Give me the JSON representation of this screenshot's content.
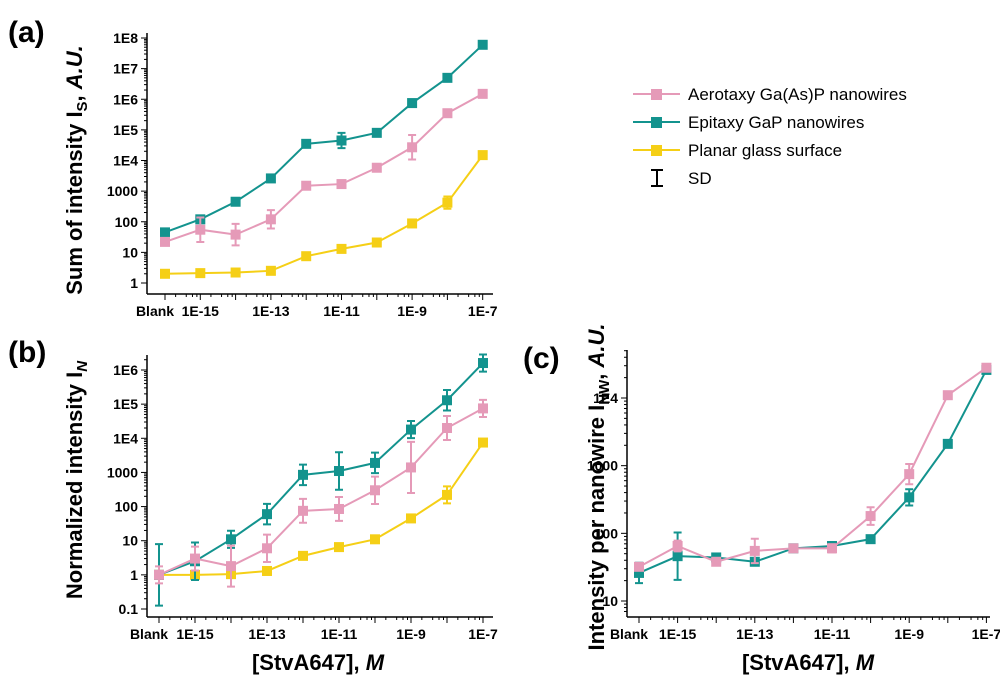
{
  "chart_data": [
    {
      "type": "line",
      "panel_label": "(a)",
      "ylabel": "Sum of intensity I",
      "ylabel_sub": "S",
      "ylabel_unit": "A.U.",
      "xlabel": "",
      "yscale": "log",
      "ylim": [
        1,
        100000000
      ],
      "y_ticks": [
        "1",
        "10",
        "100",
        "1000",
        "1E4",
        "1E5",
        "1E6",
        "1E7",
        "1E8"
      ],
      "x_ticks": [
        "Blank",
        "1E-15",
        "1E-13",
        "1E-11",
        "1E-9",
        "1E-7"
      ],
      "x": [
        "Blank",
        "1E-15",
        "1E-14",
        "1E-13",
        "1E-12",
        "1E-11",
        "1E-10",
        "1E-9",
        "1E-8",
        "1E-7"
      ],
      "series": [
        {
          "name": "Aerotaxy Ga(As)P nanowires",
          "color": "#e59ab8",
          "values": [
            22,
            55,
            38,
            120,
            1500,
            1700,
            5800,
            27000,
            350000,
            1500000
          ],
          "err": [
            0.1,
            0.4,
            0.35,
            0.3,
            0.1,
            0.1,
            0.08,
            0.4,
            0.1,
            0.05
          ]
        },
        {
          "name": "Epitaxy GaP nanowires",
          "color": "#13938e",
          "values": [
            45,
            120,
            450,
            2600,
            35000,
            45000,
            80000,
            750000,
            5000000,
            60000000
          ],
          "err": [
            0.1,
            0.08,
            0.06,
            0.06,
            0.06,
            0.25,
            0.06,
            0.06,
            0.05,
            0.05
          ]
        },
        {
          "name": "Planar glass surface",
          "color": "#f5cf16",
          "values": [
            2,
            2.1,
            2.2,
            2.5,
            7.5,
            13,
            21,
            88,
            420,
            15000
          ],
          "err": [
            0.08,
            0.06,
            0.06,
            0.06,
            0.08,
            0.08,
            0.08,
            0.1,
            0.2,
            0.08
          ]
        }
      ]
    },
    {
      "type": "line",
      "panel_label": "(b)",
      "ylabel": "Normalized intensity I",
      "ylabel_sub": "N",
      "xlabel": "[StvA647],",
      "xlabel_unit": "M",
      "yscale": "log",
      "ylim": [
        0.1,
        3000000
      ],
      "y_ticks": [
        "0.1",
        "1",
        "10",
        "100",
        "1000",
        "1E4",
        "1E5",
        "1E6"
      ],
      "x_ticks": [
        "Blank",
        "1E-15",
        "1E-13",
        "1E-11",
        "1E-9",
        "1E-7"
      ],
      "x": [
        "Blank",
        "1E-15",
        "1E-14",
        "1E-13",
        "1E-12",
        "1E-11",
        "1E-10",
        "1E-9",
        "1E-8",
        "1E-7"
      ],
      "series": [
        {
          "name": "Aerotaxy Ga(As)P nanowires",
          "color": "#e59ab8",
          "values": [
            1,
            3,
            1.8,
            6,
            75,
            85,
            300,
            1400,
            20000,
            75000
          ],
          "err": [
            0.25,
            0.35,
            0.6,
            0.4,
            0.35,
            0.35,
            0.4,
            0.75,
            0.35,
            0.25
          ]
        },
        {
          "name": "Epitaxy GaP nanowires",
          "color": "#13938e",
          "values": [
            1,
            2.5,
            11,
            60,
            850,
            1100,
            1900,
            18000,
            130000,
            1600000
          ],
          "err": [
            0.9,
            0.55,
            0.25,
            0.3,
            0.3,
            0.55,
            0.3,
            0.25,
            0.3,
            0.25
          ]
        },
        {
          "name": "Planar glass surface",
          "color": "#f5cf16",
          "values": [
            1,
            1,
            1.05,
            1.3,
            3.6,
            6.5,
            11,
            45,
            220,
            7500
          ],
          "err": [
            0.1,
            0.08,
            0.08,
            0.08,
            0.1,
            0.1,
            0.1,
            0.08,
            0.25,
            0.1
          ]
        }
      ]
    },
    {
      "type": "line",
      "panel_label": "(c)",
      "ylabel": "Intensity per nanowire I",
      "ylabel_sub": "NW",
      "ylabel_unit": "A.U.",
      "xlabel": "[StvA647],",
      "xlabel_unit": "M",
      "yscale": "log",
      "ylim": [
        7,
        50000
      ],
      "y_ticks": [
        "10",
        "100",
        "1000",
        "1E4"
      ],
      "x_ticks": [
        "Blank",
        "1E-15",
        "1E-13",
        "1E-11",
        "1E-9",
        "1E-7"
      ],
      "x": [
        "Blank",
        "1E-15",
        "1E-14",
        "1E-13",
        "1E-12",
        "1E-11",
        "1E-10",
        "1E-9",
        "1E-8",
        "1E-7"
      ],
      "series": [
        {
          "name": "Aerotaxy Ga(As)P nanowires",
          "color": "#e59ab8",
          "values": [
            32,
            65,
            38,
            55,
            60,
            60,
            180,
            750,
            11000,
            28000
          ],
          "err": [
            0.04,
            0.08,
            0.04,
            0.18,
            0.04,
            0.06,
            0.13,
            0.15,
            0.05,
            0.03
          ]
        },
        {
          "name": "Epitaxy GaP nanowires",
          "color": "#13938e",
          "values": [
            26,
            46,
            44,
            38,
            60,
            65,
            82,
            340,
            2100,
            26000
          ],
          "err": [
            0.15,
            0.35,
            0.04,
            0.05,
            0.04,
            0.04,
            0.04,
            0.12,
            0.05,
            0.04
          ]
        }
      ]
    }
  ],
  "legend": {
    "position": "top-right",
    "items": [
      {
        "label": "Aerotaxy Ga(As)P nanowires",
        "color": "#e59ab8"
      },
      {
        "label": "Epitaxy GaP nanowires",
        "color": "#13938e"
      },
      {
        "label": "Planar glass surface",
        "color": "#f5cf16"
      },
      {
        "label": "SD",
        "color": "#000000"
      }
    ]
  }
}
